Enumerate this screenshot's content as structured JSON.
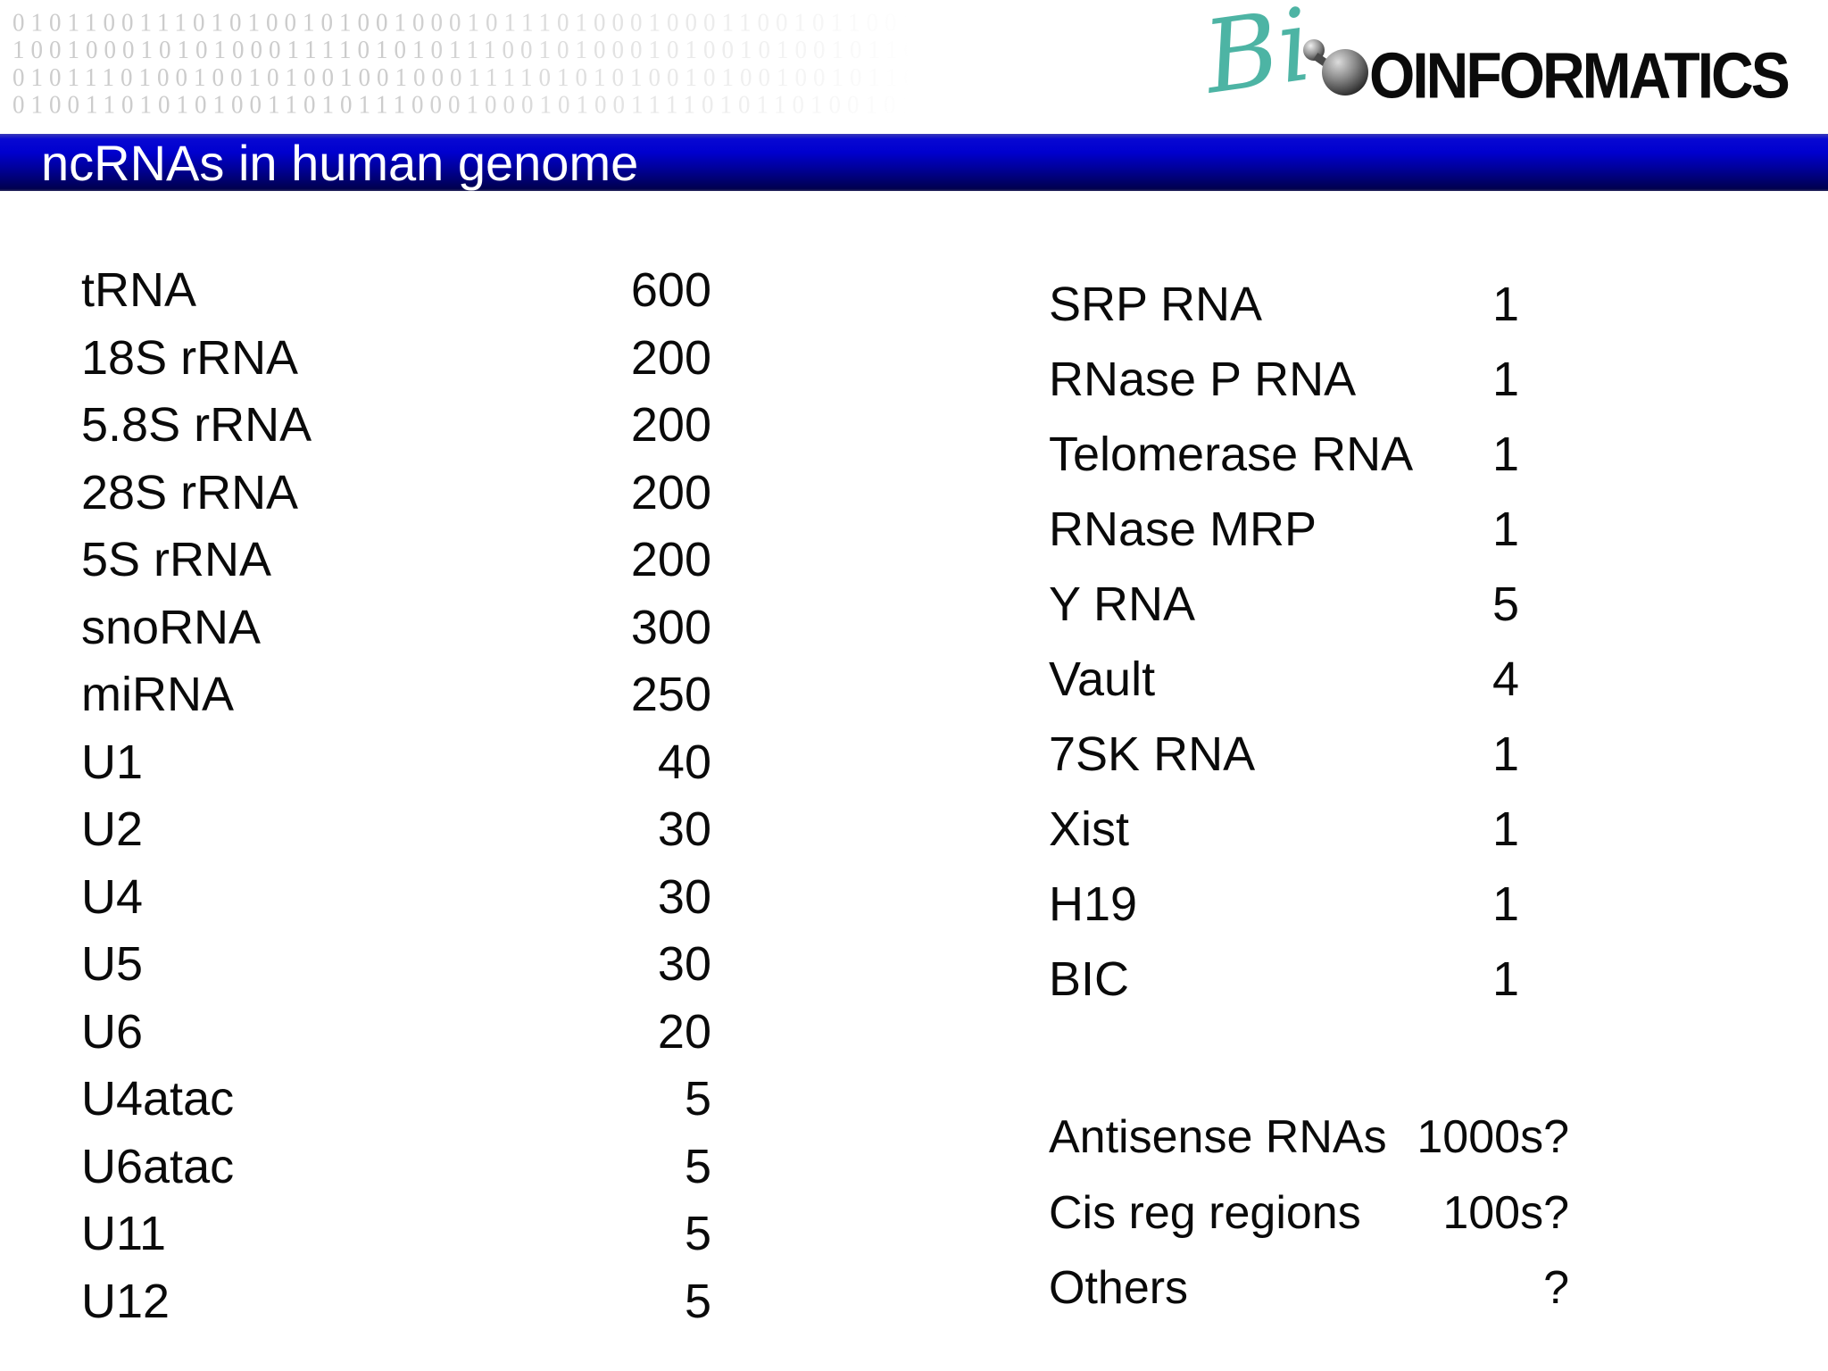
{
  "header": {
    "binary_lines": [
      "0101100111010100101001000101110100010001100101100101",
      "1001000101010001111010101110010100010100101001011010",
      "0101110100100101001001000111101010100101001001011001",
      "0100110101010011010111000100010100111101011010010110"
    ],
    "logo": {
      "script_text": "Bi",
      "wordmark": "OINFORMATICS",
      "script_color": "#4db4a4",
      "wordmark_color": "#0b0b0b",
      "molecule_icon": "sphere-with-satellite"
    }
  },
  "title_bar": {
    "title": "ncRNAs in human genome",
    "text_color": "#ffffff",
    "bg_top_color": "#0808d2",
    "bg_bottom_color": "#00004e"
  },
  "left_table": {
    "rows": [
      {
        "label": "tRNA",
        "value": "600"
      },
      {
        "label": "18S rRNA",
        "value": "200"
      },
      {
        "label": "5.8S rRNA",
        "value": "200"
      },
      {
        "label": "28S rRNA",
        "value": "200"
      },
      {
        "label": "5S rRNA",
        "value": "200"
      },
      {
        "label": "snoRNA",
        "value": "300"
      },
      {
        "label": "miRNA",
        "value": "250"
      },
      {
        "label": "U1",
        "value": "40"
      },
      {
        "label": "U2",
        "value": "30"
      },
      {
        "label": "U4",
        "value": "30"
      },
      {
        "label": "U5",
        "value": "30"
      },
      {
        "label": "U6",
        "value": "20"
      },
      {
        "label": "U4atac",
        "value": "5"
      },
      {
        "label": "U6atac",
        "value": "5"
      },
      {
        "label": "U11",
        "value": "5"
      },
      {
        "label": "U12",
        "value": "5"
      }
    ]
  },
  "right_table": {
    "rows": [
      {
        "label": "SRP RNA",
        "value": "1"
      },
      {
        "label": "RNase P RNA",
        "value": "1"
      },
      {
        "label": "Telomerase RNA",
        "value": "1"
      },
      {
        "label": "RNase MRP",
        "value": "1"
      },
      {
        "label": "Y RNA",
        "value": "5"
      },
      {
        "label": "Vault",
        "value": "4"
      },
      {
        "label": "7SK RNA",
        "value": "1"
      },
      {
        "label": "Xist",
        "value": "1"
      },
      {
        "label": "H19",
        "value": "1"
      },
      {
        "label": "BIC",
        "value": "1"
      }
    ]
  },
  "estimates": {
    "rows": [
      {
        "label": "Antisense RNAs",
        "value": "1000s?"
      },
      {
        "label": "Cis reg regions",
        "value": "100s?"
      },
      {
        "label": "Others",
        "value": "?"
      }
    ]
  }
}
